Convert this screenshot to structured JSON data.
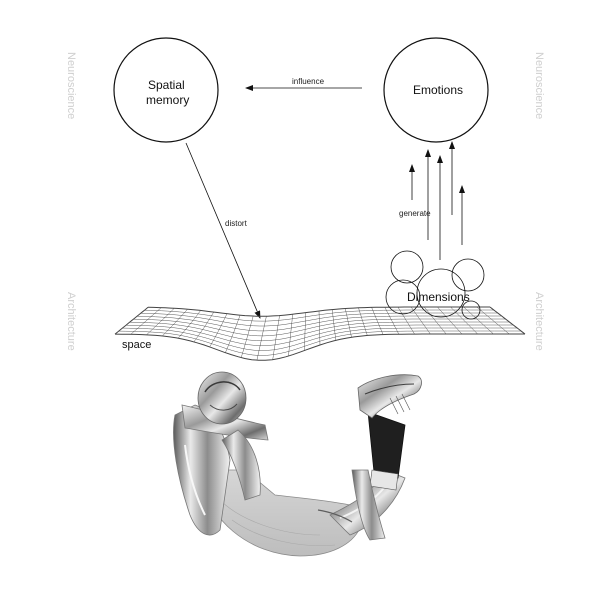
{
  "nodes": {
    "spatial_memory": {
      "line1": "Spatial",
      "line2": "memory"
    },
    "emotions": {
      "label": "Emotions"
    },
    "dimensions": {
      "label": "Dimensions"
    }
  },
  "edges": {
    "influence": "influence",
    "distort": "distort",
    "generate": "generate"
  },
  "surface": {
    "label": "space"
  },
  "side_labels": {
    "left_top": "Neuroscience",
    "right_top": "Neuroscience",
    "left_bottom": "Architecture",
    "right_bottom": "Architecture"
  },
  "colors": {
    "ink": "#111111",
    "side_text": "#cfcfcf",
    "grid": "#444444"
  },
  "figure": {
    "icon": "reclining-metallic-figure-illustration"
  }
}
